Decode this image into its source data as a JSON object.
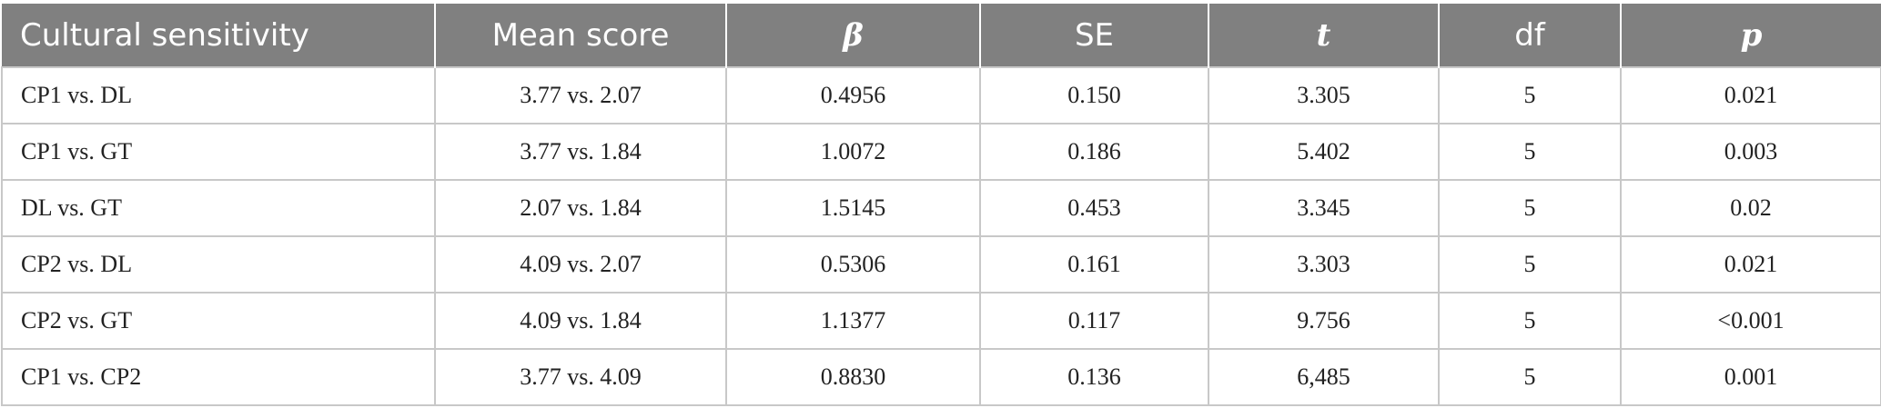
{
  "table": {
    "headers": [
      "Cultural sensitivity",
      "Mean score",
      "β",
      "SE",
      "t",
      "df",
      "p"
    ],
    "rows": [
      [
        "CP1 vs. DL",
        "3.77 vs. 2.07",
        "0.4956",
        "0.150",
        "3.305",
        "5",
        "0.021"
      ],
      [
        "CP1 vs. GT",
        "3.77 vs. 1.84",
        "1.0072",
        "0.186",
        "5.402",
        "5",
        "0.003"
      ],
      [
        "DL vs. GT",
        "2.07 vs. 1.84",
        "1.5145",
        "0.453",
        "3.345",
        "5",
        "0.02"
      ],
      [
        "CP2 vs. DL",
        "4.09 vs. 2.07",
        "0.5306",
        "0.161",
        "3.303",
        "5",
        "0.021"
      ],
      [
        "CP2 vs. GT",
        "4.09 vs. 1.84",
        "1.1377",
        "0.117",
        "9.756",
        "5",
        "<0.001"
      ],
      [
        "CP1 vs. CP2",
        "3.77 vs. 4.09",
        "0.8830",
        "0.136",
        "6,485",
        "5",
        "0.001"
      ]
    ]
  },
  "colors": {
    "header_bg": "#808080",
    "header_text": "#ffffff",
    "grid": "#c8c8c8"
  }
}
